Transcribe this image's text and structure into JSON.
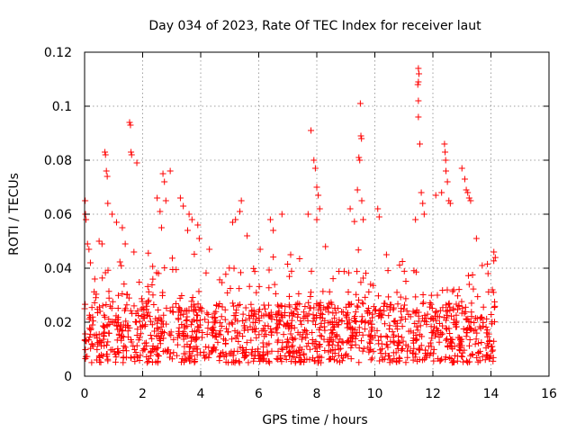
{
  "chart_data": {
    "type": "scatter",
    "title": "Day 034 of 2023, Rate Of TEC Index for receiver laut",
    "xlabel": "GPS time / hours",
    "ylabel": "ROTI / TECUs",
    "xlim": [
      0,
      16
    ],
    "ylim": [
      0,
      0.12
    ],
    "xticks": [
      0,
      2,
      4,
      6,
      8,
      10,
      12,
      14,
      16
    ],
    "xtick_labels": [
      "0",
      "2",
      "4",
      "6",
      "8",
      "10",
      "12",
      "14",
      "16"
    ],
    "yticks": [
      0,
      0.02,
      0.04,
      0.06,
      0.08,
      0.1,
      0.12
    ],
    "ytick_labels": [
      "0",
      "0.02",
      "0.04",
      "0.06",
      "0.08",
      "0.1",
      "0.12"
    ],
    "grid": true,
    "marker": "+",
    "color": "#ff0000",
    "series": [
      {
        "name": "ROTI",
        "x_range_observed": [
          0,
          14.15
        ],
        "baseline_band": [
          0.005,
          0.025
        ],
        "points": [
          {
            "x": 0.02,
            "y": 0.065
          },
          {
            "x": 0.03,
            "y": 0.06
          },
          {
            "x": 0.05,
            "y": 0.058
          },
          {
            "x": 0.1,
            "y": 0.049
          },
          {
            "x": 0.15,
            "y": 0.047
          },
          {
            "x": 0.2,
            "y": 0.042
          },
          {
            "x": 0.35,
            "y": 0.036
          },
          {
            "x": 0.5,
            "y": 0.05
          },
          {
            "x": 0.6,
            "y": 0.049
          },
          {
            "x": 0.7,
            "y": 0.083
          },
          {
            "x": 0.72,
            "y": 0.082
          },
          {
            "x": 0.75,
            "y": 0.076
          },
          {
            "x": 0.78,
            "y": 0.074
          },
          {
            "x": 0.8,
            "y": 0.064
          },
          {
            "x": 0.95,
            "y": 0.06
          },
          {
            "x": 1.1,
            "y": 0.057
          },
          {
            "x": 1.3,
            "y": 0.055
          },
          {
            "x": 1.4,
            "y": 0.049
          },
          {
            "x": 1.55,
            "y": 0.094
          },
          {
            "x": 1.58,
            "y": 0.093
          },
          {
            "x": 1.6,
            "y": 0.083
          },
          {
            "x": 1.62,
            "y": 0.082
          },
          {
            "x": 1.8,
            "y": 0.079
          },
          {
            "x": 1.7,
            "y": 0.046
          },
          {
            "x": 2.5,
            "y": 0.066
          },
          {
            "x": 2.6,
            "y": 0.061
          },
          {
            "x": 2.7,
            "y": 0.075
          },
          {
            "x": 2.75,
            "y": 0.072
          },
          {
            "x": 2.8,
            "y": 0.065
          },
          {
            "x": 2.95,
            "y": 0.076
          },
          {
            "x": 2.65,
            "y": 0.055
          },
          {
            "x": 3.3,
            "y": 0.066
          },
          {
            "x": 3.4,
            "y": 0.063
          },
          {
            "x": 3.6,
            "y": 0.06
          },
          {
            "x": 3.7,
            "y": 0.058
          },
          {
            "x": 3.9,
            "y": 0.056
          },
          {
            "x": 3.95,
            "y": 0.051
          },
          {
            "x": 3.55,
            "y": 0.054
          },
          {
            "x": 4.3,
            "y": 0.047
          },
          {
            "x": 5.1,
            "y": 0.057
          },
          {
            "x": 5.2,
            "y": 0.058
          },
          {
            "x": 5.4,
            "y": 0.065
          },
          {
            "x": 5.35,
            "y": 0.061
          },
          {
            "x": 5.6,
            "y": 0.052
          },
          {
            "x": 6.05,
            "y": 0.047
          },
          {
            "x": 6.4,
            "y": 0.058
          },
          {
            "x": 6.5,
            "y": 0.054
          },
          {
            "x": 6.8,
            "y": 0.06
          },
          {
            "x": 7.1,
            "y": 0.045
          },
          {
            "x": 7.8,
            "y": 0.091
          },
          {
            "x": 7.9,
            "y": 0.08
          },
          {
            "x": 7.95,
            "y": 0.077
          },
          {
            "x": 8.0,
            "y": 0.07
          },
          {
            "x": 8.05,
            "y": 0.067
          },
          {
            "x": 8.1,
            "y": 0.062
          },
          {
            "x": 8.0,
            "y": 0.058
          },
          {
            "x": 7.7,
            "y": 0.06
          },
          {
            "x": 8.3,
            "y": 0.048
          },
          {
            "x": 9.15,
            "y": 0.062
          },
          {
            "x": 9.5,
            "y": 0.101
          },
          {
            "x": 9.52,
            "y": 0.089
          },
          {
            "x": 9.54,
            "y": 0.088
          },
          {
            "x": 9.45,
            "y": 0.081
          },
          {
            "x": 9.48,
            "y": 0.08
          },
          {
            "x": 9.4,
            "y": 0.069
          },
          {
            "x": 9.55,
            "y": 0.065
          },
          {
            "x": 9.6,
            "y": 0.058
          },
          {
            "x": 10.1,
            "y": 0.062
          },
          {
            "x": 10.15,
            "y": 0.059
          },
          {
            "x": 10.4,
            "y": 0.045
          },
          {
            "x": 11.5,
            "y": 0.114
          },
          {
            "x": 11.52,
            "y": 0.112
          },
          {
            "x": 11.5,
            "y": 0.109
          },
          {
            "x": 11.48,
            "y": 0.108
          },
          {
            "x": 11.5,
            "y": 0.102
          },
          {
            "x": 11.5,
            "y": 0.096
          },
          {
            "x": 11.55,
            "y": 0.086
          },
          {
            "x": 11.6,
            "y": 0.068
          },
          {
            "x": 11.65,
            "y": 0.064
          },
          {
            "x": 11.7,
            "y": 0.06
          },
          {
            "x": 11.4,
            "y": 0.058
          },
          {
            "x": 12.1,
            "y": 0.067
          },
          {
            "x": 12.3,
            "y": 0.068
          },
          {
            "x": 12.4,
            "y": 0.086
          },
          {
            "x": 12.42,
            "y": 0.083
          },
          {
            "x": 12.44,
            "y": 0.08
          },
          {
            "x": 12.45,
            "y": 0.076
          },
          {
            "x": 12.5,
            "y": 0.072
          },
          {
            "x": 12.55,
            "y": 0.065
          },
          {
            "x": 12.6,
            "y": 0.064
          },
          {
            "x": 13.0,
            "y": 0.077
          },
          {
            "x": 13.1,
            "y": 0.073
          },
          {
            "x": 13.15,
            "y": 0.069
          },
          {
            "x": 13.2,
            "y": 0.068
          },
          {
            "x": 13.25,
            "y": 0.066
          },
          {
            "x": 13.3,
            "y": 0.065
          },
          {
            "x": 13.5,
            "y": 0.051
          },
          {
            "x": 13.7,
            "y": 0.041
          },
          {
            "x": 14.1,
            "y": 0.046
          },
          {
            "x": 13.9,
            "y": 0.038
          },
          {
            "x": 14.05,
            "y": 0.032
          }
        ]
      }
    ]
  }
}
